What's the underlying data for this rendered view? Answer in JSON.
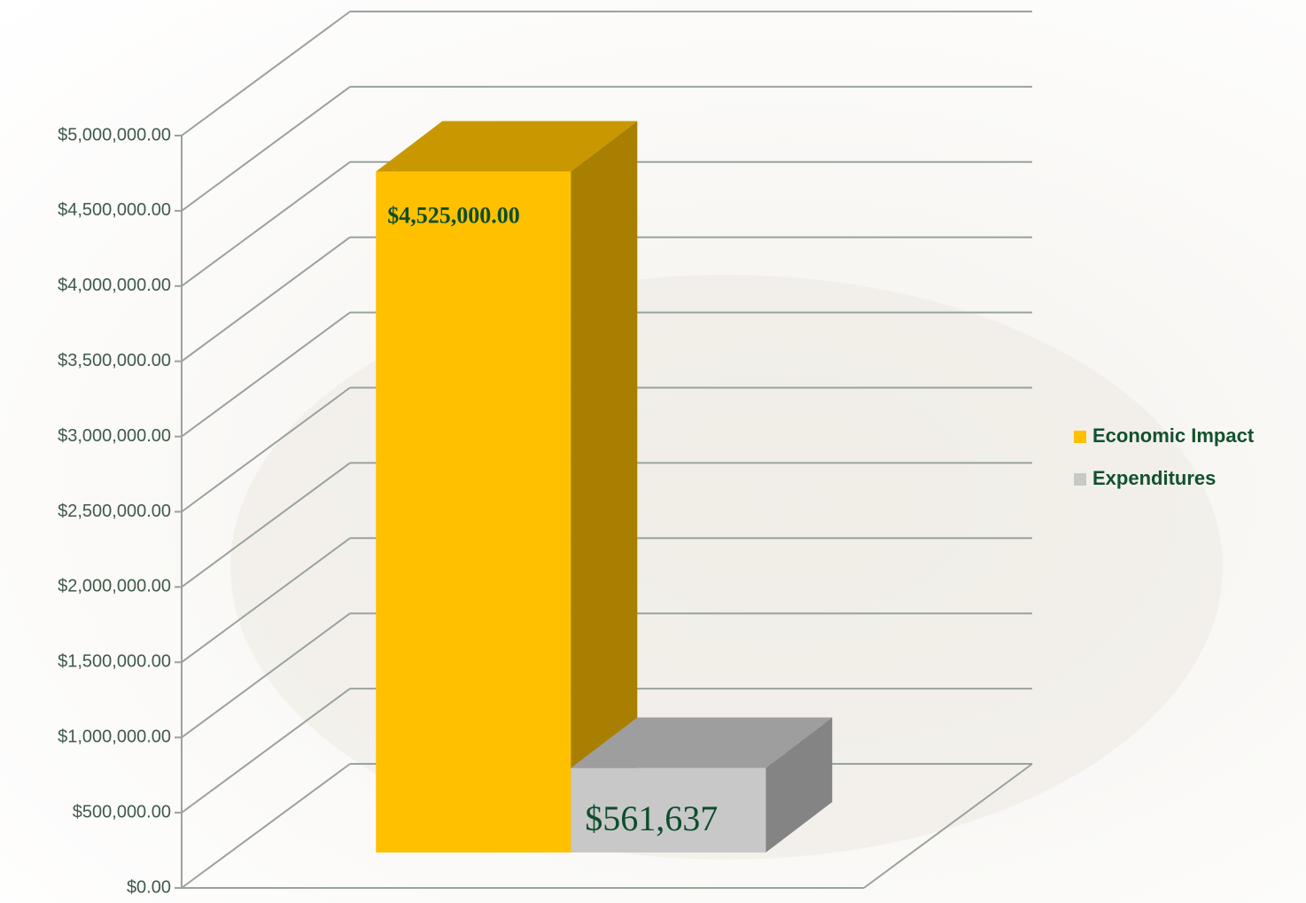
{
  "chart_data": {
    "type": "bar3d",
    "categories": [
      null
    ],
    "series": [
      {
        "name": "Economic Impact",
        "color": "#FFC000",
        "values": [
          4525000
        ],
        "value_labels": [
          "$4,525,000.00"
        ]
      },
      {
        "name": "Expenditures",
        "color": "#C8C8C8",
        "values": [
          561637
        ],
        "value_labels": [
          "$561,637"
        ]
      }
    ],
    "ylim": [
      0,
      5000000
    ],
    "yticks": [
      {
        "value": 0,
        "label": "$0.00"
      },
      {
        "value": 500000,
        "label": "$500,000.00"
      },
      {
        "value": 1000000,
        "label": "$1,000,000.00"
      },
      {
        "value": 1500000,
        "label": "$1,500,000.00"
      },
      {
        "value": 2000000,
        "label": "$2,000,000.00"
      },
      {
        "value": 2500000,
        "label": "$2,500,000.00"
      },
      {
        "value": 3000000,
        "label": "$3,000,000.00"
      },
      {
        "value": 3500000,
        "label": "$3,500,000.00"
      },
      {
        "value": 4000000,
        "label": "$4,000,000.00"
      },
      {
        "value": 4500000,
        "label": "$4,500,000.00"
      },
      {
        "value": 5000000,
        "label": "$5,000,000.00"
      }
    ],
    "grid": true,
    "legend": "right"
  }
}
